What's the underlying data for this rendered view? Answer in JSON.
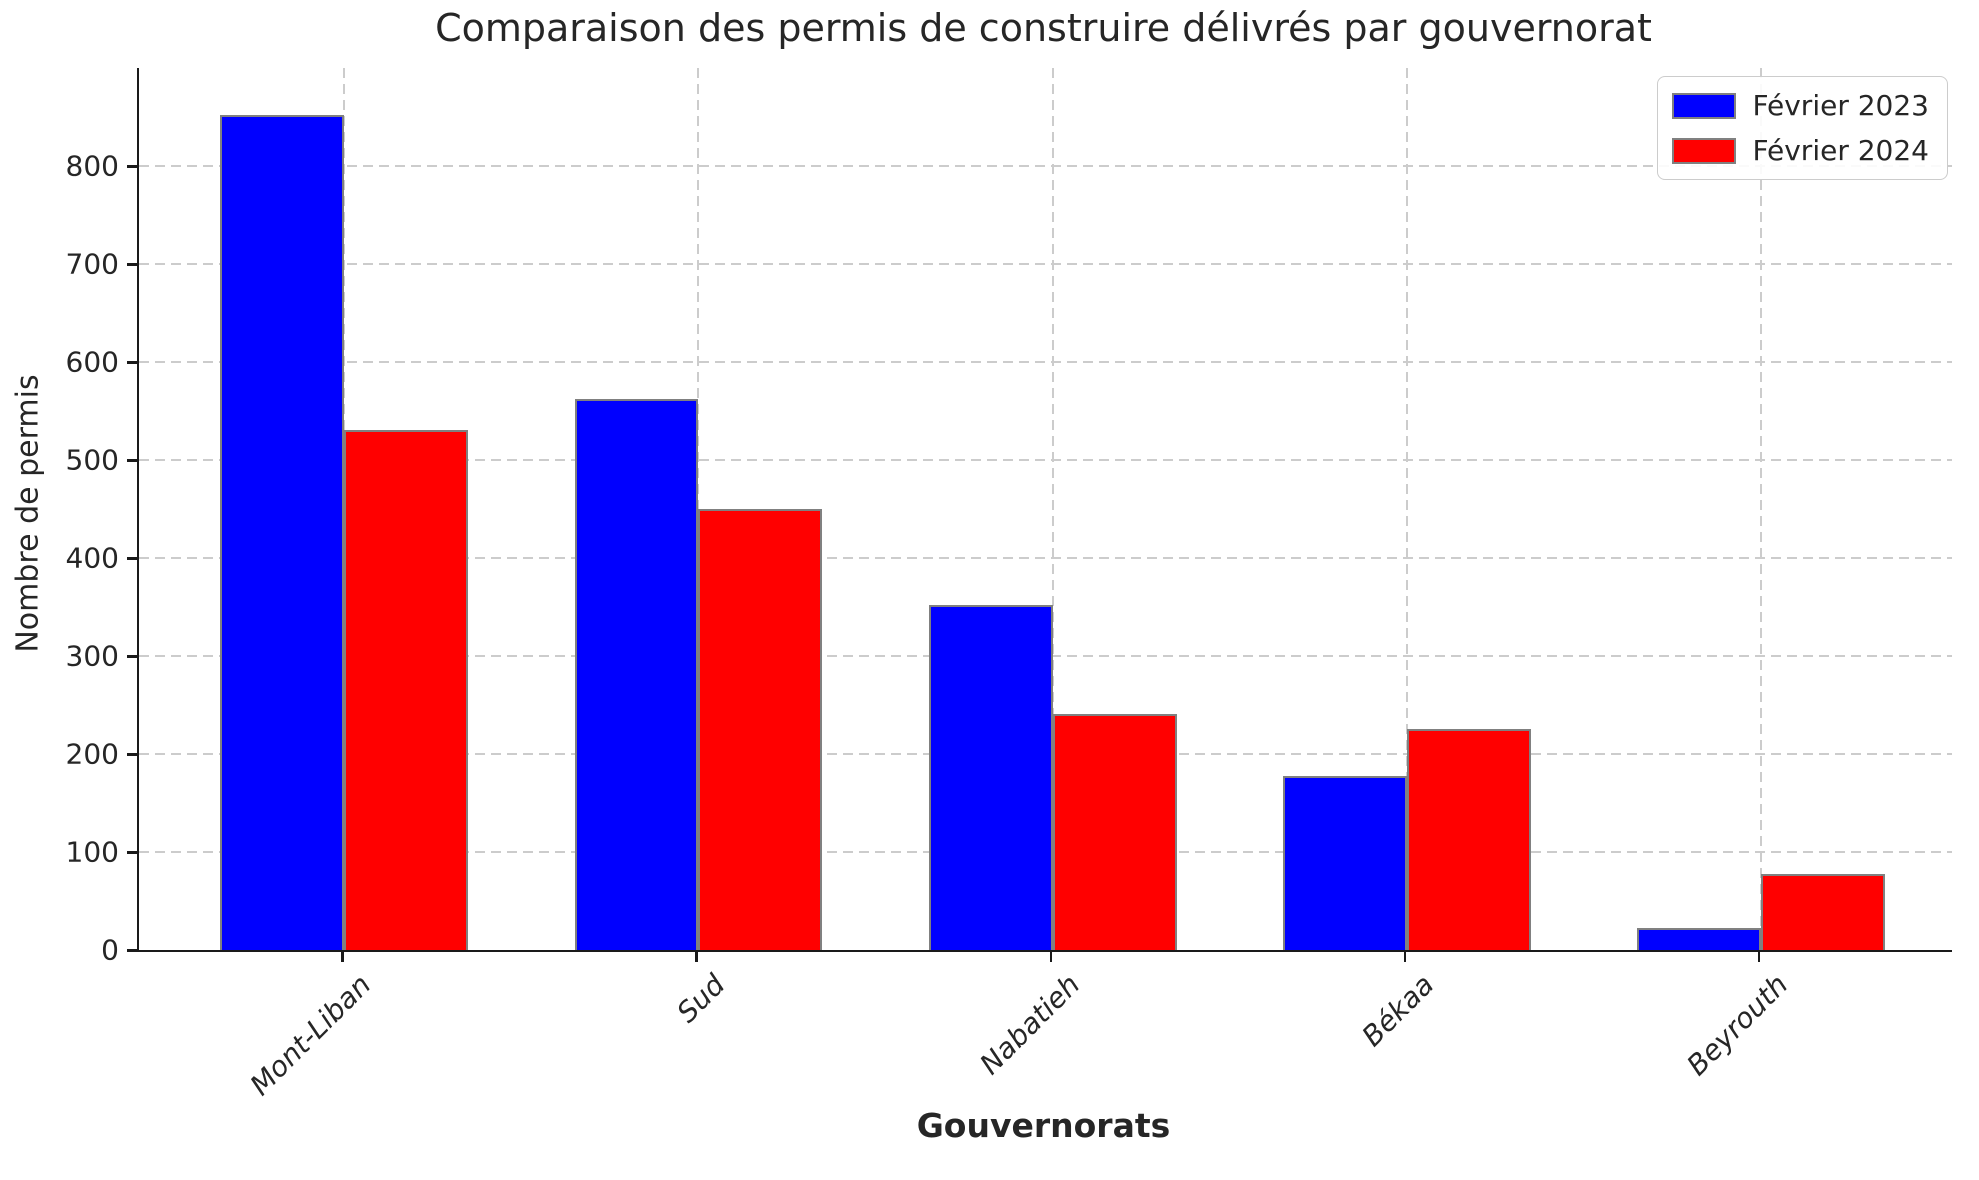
{
  "chart_data": {
    "type": "bar",
    "title": "Comparaison des permis de construire délivrés par gouvernorat",
    "xlabel": "Gouvernorats",
    "ylabel": "Nombre de permis",
    "categories": [
      "Mont-Liban",
      "Sud",
      "Nabatieh",
      "Békaa",
      "Beyrouth"
    ],
    "series": [
      {
        "name": "Février 2023",
        "color": "#0000ff",
        "values": [
          852,
          562,
          352,
          178,
          22
        ]
      },
      {
        "name": "Février 2024",
        "color": "#ff0000",
        "values": [
          531,
          450,
          241,
          226,
          78
        ]
      }
    ],
    "ylim": [
      0,
      900
    ],
    "yticks": [
      0,
      100,
      200,
      300,
      400,
      500,
      600,
      700,
      800
    ],
    "xtick_rotation": 45,
    "grid": true,
    "grid_style": "dashed",
    "legend_position": "upper right",
    "bar_edge_color": "#808080",
    "axis_color": "#1a1a1a",
    "grid_color": "#cccccc",
    "text_color": "#262626",
    "background_color": "#ffffff"
  }
}
